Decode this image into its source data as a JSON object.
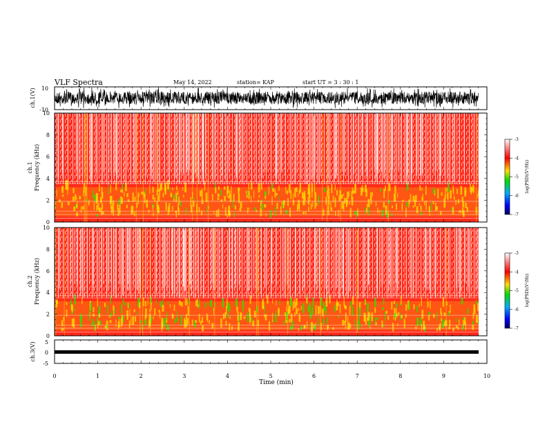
{
  "header": {
    "title": "VLF Spectra",
    "date": "May 14, 2022",
    "station": "station= KAP",
    "start": "start  UT  =   3  : 30 : 1"
  },
  "chart_data": [
    {
      "type": "line",
      "panel": "ch1-waveform",
      "ylabel": "ch.1(V)",
      "ylim": [
        -10,
        10
      ],
      "yticks": [
        "10",
        "-10"
      ],
      "xlim": [
        0,
        10
      ]
    },
    {
      "type": "heatmap",
      "panel": "ch1-spectrogram",
      "ylabel": "ch.1\nFrequency (kHz)",
      "ylim": [
        0,
        10
      ],
      "yticks": [
        "0",
        "2",
        "4",
        "6",
        "8",
        "10"
      ],
      "xlim": [
        0,
        10
      ],
      "colorbar": {
        "label": "log(PSD)(V²/Hz)",
        "range": [
          -7,
          -3
        ],
        "ticks": [
          "-3",
          "-4",
          "-5",
          "-6",
          "-7"
        ]
      }
    },
    {
      "type": "heatmap",
      "panel": "ch2-spectrogram",
      "ylabel": "ch.2\nFrequency (kHz)",
      "ylim": [
        0,
        10
      ],
      "yticks": [
        "0",
        "2",
        "4",
        "6",
        "8",
        "10"
      ],
      "xlim": [
        0,
        10
      ],
      "colorbar": {
        "label": "log(PSD)(V²/Hz)",
        "range": [
          -7,
          -3
        ],
        "ticks": [
          "-3",
          "-4",
          "-5",
          "-6",
          "-7"
        ]
      }
    },
    {
      "type": "line",
      "panel": "ch3-waveform",
      "ylabel": "ch.3(V)",
      "ylim": [
        -5,
        5
      ],
      "yticks": [
        "5",
        "0",
        "-5"
      ],
      "xlim": [
        0,
        10
      ]
    }
  ],
  "xaxis": {
    "label": "Time (min)",
    "ticks": [
      "0",
      "1",
      "2",
      "3",
      "4",
      "5",
      "6",
      "7",
      "8",
      "9",
      "10"
    ]
  },
  "colors": {
    "spectrogram_bg": "#ff2a1a",
    "accent_yellow": "#ffd400",
    "accent_green": "#33dd00",
    "waveform": "#000000"
  }
}
